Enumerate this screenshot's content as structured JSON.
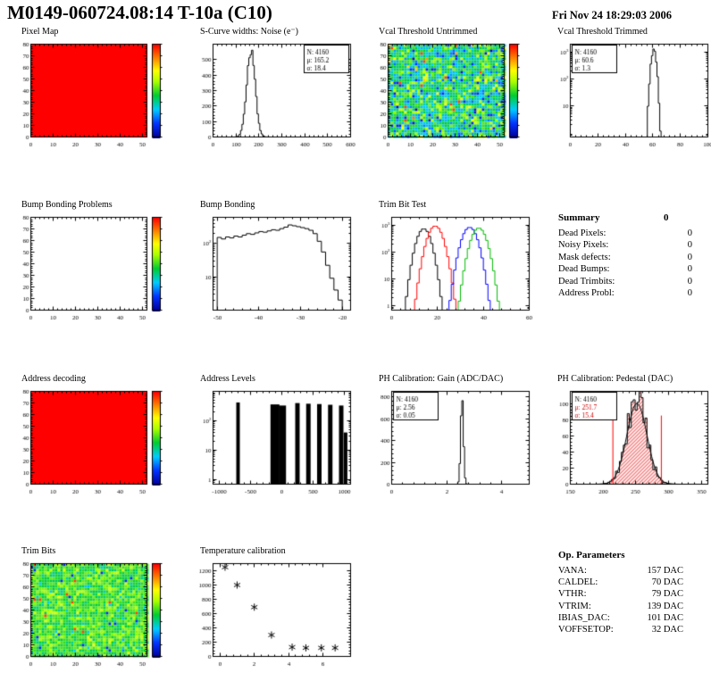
{
  "header": {
    "title": "M0149-060724.08:14 T-10a (C10)",
    "date": "Fri Nov 24 18:29:03 2006"
  },
  "summary": {
    "title": "Summary",
    "total": "0",
    "rows": [
      {
        "label": "Dead Pixels:",
        "value": "0"
      },
      {
        "label": "Noisy Pixels:",
        "value": "0"
      },
      {
        "label": "Mask defects:",
        "value": "0"
      },
      {
        "label": "Dead Bumps:",
        "value": "0"
      },
      {
        "label": "Dead Trimbits:",
        "value": "0"
      },
      {
        "label": "Address Probl:",
        "value": "0"
      }
    ]
  },
  "op_parameters": {
    "title": "Op. Parameters",
    "rows": [
      {
        "label": "VANA:",
        "value": "157 DAC"
      },
      {
        "label": "CALDEL:",
        "value": "70 DAC"
      },
      {
        "label": "VTHR:",
        "value": "79 DAC"
      },
      {
        "label": "VTRIM:",
        "value": "139 DAC"
      },
      {
        "label": "IBIAS_DAC:",
        "value": "101 DAC"
      },
      {
        "label": "VOFFSETOP:",
        "value": "32 DAC"
      }
    ]
  },
  "palette": [
    "#000099",
    "#0033ff",
    "#00ccff",
    "#00cc33",
    "#aaff00",
    "#ffff00",
    "#ff8800",
    "#ff0000"
  ],
  "chart_data": [
    {
      "title": "Pixel Map",
      "type": "heatmap",
      "mode": "solid",
      "fill": "#ff0000",
      "xlim": [
        0,
        52
      ],
      "ylim": [
        0,
        80
      ],
      "xticks": [
        0,
        10,
        20,
        30,
        40,
        50
      ],
      "yticks": [
        0,
        10,
        20,
        30,
        40,
        50,
        60,
        70,
        80
      ],
      "colorbar": true
    },
    {
      "title": "S-Curve widths: Noise (e⁻)",
      "type": "hist",
      "dist": "gauss",
      "n": 4160,
      "mean": 165.2,
      "sigma": 18.4,
      "peak": 570,
      "bins": 100,
      "jitter": 0.08,
      "seed": 3,
      "xlim": [
        0,
        600
      ],
      "xticks": [
        0,
        100,
        200,
        300,
        400,
        500,
        600
      ],
      "ylog": false,
      "ylim": [
        0,
        600
      ],
      "yticks": [
        0,
        100,
        200,
        300,
        400,
        500
      ],
      "stats": {
        "pos": "tr",
        "lines": [
          {
            "text": "N: 4160"
          },
          {
            "text": "μ: 165.2"
          },
          {
            "text": "σ: 18.4"
          }
        ]
      }
    },
    {
      "title": "Vcal Threshold Untrimmed",
      "type": "heatmap",
      "mode": "noise",
      "seed": 7,
      "noise_mean": 0.42,
      "noise_sd": 0.13,
      "xlim": [
        0,
        52
      ],
      "ylim": [
        0,
        80
      ],
      "xticks": [
        0,
        10,
        20,
        30,
        40,
        50
      ],
      "yticks": [
        0,
        10,
        20,
        30,
        40,
        50,
        60,
        70,
        80
      ],
      "colorbar": true
    },
    {
      "title": "Vcal Threshold Trimmed",
      "type": "hist",
      "dist": "gauss",
      "n": 4160,
      "mean": 60.6,
      "sigma": 1.3,
      "peak": 1276,
      "bins": 100,
      "jitter": 0.2,
      "seed": 5,
      "xlim": [
        0,
        100
      ],
      "xticks": [
        0,
        20,
        40,
        60,
        80,
        100
      ],
      "ylog": true,
      "ylim": [
        0.7,
        2000
      ],
      "yticks": [
        10,
        100,
        1000
      ],
      "stats": {
        "pos": "tl",
        "lines": [
          {
            "text": "N: 4160"
          },
          {
            "text": "μ: 60.6"
          },
          {
            "text": "σ: 1.3"
          }
        ]
      }
    },
    {
      "title": "Bump Bonding Problems",
      "type": "heatmap",
      "mode": "empty",
      "xlim": [
        0,
        52
      ],
      "ylim": [
        0,
        80
      ],
      "xticks": [
        0,
        10,
        20,
        30,
        40,
        50
      ],
      "yticks": [
        0,
        10,
        20,
        30,
        40,
        50,
        60,
        70,
        80
      ],
      "colorbar": true
    },
    {
      "title": "Bump Bonding",
      "type": "hist",
      "dist": "bins",
      "x0": -50,
      "binw": 1,
      "values": [
        150,
        135,
        155,
        145,
        165,
        155,
        175,
        195,
        185,
        205,
        225,
        215,
        235,
        255,
        245,
        275,
        305,
        355,
        335,
        315,
        295,
        275,
        245,
        195,
        115,
        55,
        22,
        9,
        4,
        2
      ],
      "xlim": [
        -51,
        -18
      ],
      "xticks": [
        -50,
        -40,
        -30,
        -20
      ],
      "ylog": true,
      "ylim": [
        1,
        600
      ],
      "yticks": [
        10,
        100
      ]
    },
    {
      "title": "Trim Bit Test",
      "type": "multihist",
      "bins": 60,
      "xlim": [
        0,
        60
      ],
      "xticks": [
        0,
        20,
        40,
        60
      ],
      "ylog": true,
      "ylim": [
        0.7,
        2000
      ],
      "yticks": [
        1,
        10,
        100,
        1000
      ],
      "series": [
        {
          "color": "#000000",
          "mean": 14,
          "sigma": 2.2,
          "peak": 750
        },
        {
          "color": "#ff0000",
          "mean": 19,
          "sigma": 2.4,
          "peak": 950
        },
        {
          "color": "#0000ff",
          "mean": 34,
          "sigma": 2.4,
          "peak": 850
        },
        {
          "color": "#00bb00",
          "mean": 38,
          "sigma": 2.4,
          "peak": 800
        }
      ]
    },
    {
      "title": "Address decoding",
      "type": "heatmap",
      "mode": "solid",
      "fill": "#ff0000",
      "xlim": [
        0,
        52
      ],
      "ylim": [
        0,
        80
      ],
      "xticks": [
        0,
        10,
        20,
        30,
        40,
        50
      ],
      "yticks": [
        0,
        10,
        20,
        30,
        40,
        50,
        60,
        70,
        80
      ],
      "colorbar": true
    },
    {
      "title": "Address Levels",
      "type": "spikes",
      "xlim": [
        -1100,
        1100
      ],
      "xticks": [
        -1000,
        -500,
        0,
        500,
        1000
      ],
      "ylog": true,
      "ylim": [
        0.7,
        1000
      ],
      "yticks": [
        1,
        10,
        100
      ],
      "spikes": [
        [
          -700,
          420,
          4
        ],
        [
          -110,
          360,
          10
        ],
        [
          10,
          330,
          8
        ],
        [
          250,
          400,
          5
        ],
        [
          425,
          380,
          5
        ],
        [
          600,
          370,
          5
        ],
        [
          775,
          350,
          5
        ],
        [
          950,
          330,
          5
        ],
        [
          1020,
          40,
          4
        ]
      ]
    },
    {
      "title": "PH Calibration: Gain (ADC/DAC)",
      "type": "hist",
      "dist": "gauss",
      "n": 4160,
      "mean": 2.56,
      "sigma": 0.05,
      "peak": 800,
      "bins": 100,
      "jitter": 0,
      "seed": 4,
      "xlim": [
        0,
        5
      ],
      "xticks": [
        0,
        2,
        4
      ],
      "ylog": false,
      "ylim": [
        0,
        850
      ],
      "yticks": [
        0,
        200,
        400,
        600,
        800
      ],
      "stats": {
        "pos": "tl",
        "lines": [
          {
            "text": "N: 4160"
          },
          {
            "text": "μ: 2.56"
          },
          {
            "text": "σ: 0.05"
          }
        ]
      }
    },
    {
      "title": "PH Calibration: Pedestal (DAC)",
      "type": "hist",
      "dist": "gauss",
      "n": 4160,
      "mean": 251.7,
      "sigma": 15.4,
      "peak": 100,
      "bins": 70,
      "jitter": 0.3,
      "seed": 9,
      "fill": "hatch",
      "curve": true,
      "cuts": {
        "x": [
          215,
          289
        ],
        "height": 85,
        "color": "#ff0000"
      },
      "xlim": [
        150,
        360
      ],
      "xticks": [
        150,
        200,
        250,
        300,
        350
      ],
      "ylog": false,
      "ylim": [
        0,
        115
      ],
      "yticks": [
        0,
        20,
        40,
        60,
        80,
        100
      ],
      "stats": {
        "pos": "tl",
        "lines": [
          {
            "text": "N: 4160"
          },
          {
            "text": "μ: 251.7",
            "color": "#cc0000"
          },
          {
            "text": "σ: 15.4",
            "color": "#cc0000"
          }
        ]
      }
    },
    {
      "title": "Trim Bits",
      "type": "heatmap",
      "mode": "noise",
      "seed": 13,
      "noise_mean": 0.5,
      "noise_sd": 0.07,
      "xlim": [
        0,
        52
      ],
      "ylim": [
        0,
        80
      ],
      "xticks": [
        0,
        10,
        20,
        30,
        40,
        50
      ],
      "yticks": [
        0,
        10,
        20,
        30,
        40,
        50,
        60,
        70,
        80
      ],
      "colorbar": true
    },
    {
      "title": "Temperature calibration",
      "type": "scatter",
      "marker": "asterisk",
      "points": [
        [
          0.3,
          1250
        ],
        [
          1,
          1000
        ],
        [
          2,
          690
        ],
        [
          3,
          300
        ],
        [
          4.2,
          130
        ],
        [
          5,
          120
        ],
        [
          5.9,
          120
        ],
        [
          6.7,
          120
        ]
      ],
      "xlim": [
        -0.4,
        7.6
      ],
      "xticks": [
        0,
        2,
        4,
        6
      ],
      "ylog": false,
      "ylim": [
        0,
        1300
      ],
      "yticks": [
        0,
        200,
        400,
        600,
        800,
        1000,
        1200
      ]
    }
  ]
}
